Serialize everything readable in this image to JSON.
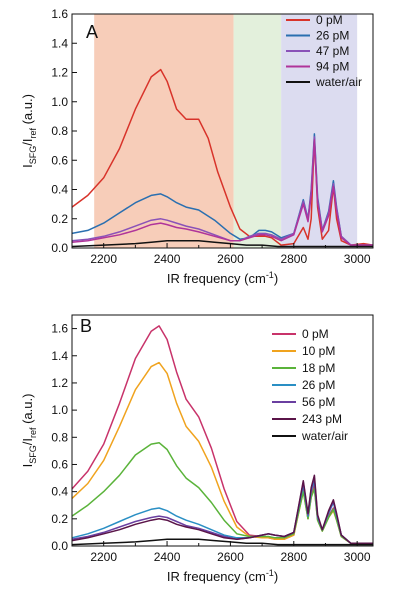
{
  "chart_data": [
    {
      "type": "line",
      "panel_label": "A",
      "xlabel": "IR frequency (cm",
      "xlabel_sup": "-1",
      "xlabel_end": ")",
      "ylabel_main": "I",
      "ylabel_sub1": "SFG",
      "ylabel_mid": "/I",
      "ylabel_sub2": "ref",
      "ylabel_end": " (a.u.)",
      "xlim": [
        2100,
        3050
      ],
      "ylim": [
        0,
        1.6
      ],
      "xticks": [
        2200,
        2400,
        2600,
        2800,
        3000
      ],
      "xtick_labels": [
        "2200",
        "2400",
        "2600",
        "2800",
        "3000"
      ],
      "yticks": [
        0.0,
        0.2,
        0.4,
        0.6,
        0.8,
        1.0,
        1.2,
        1.4,
        1.6
      ],
      "ytick_labels": [
        "0.0",
        "0.2",
        "0.4",
        "0.6",
        "0.8",
        "1.0",
        "1.2",
        "1.4",
        "1.6"
      ],
      "shaded_regions": [
        {
          "x0": 2170,
          "x1": 2610,
          "color": "#f7cdb9"
        },
        {
          "x0": 2610,
          "x1": 2760,
          "color": "#e3f0dc"
        },
        {
          "x0": 2760,
          "x1": 3000,
          "color": "#dcdcf0"
        }
      ],
      "legend_position": "top-right",
      "series": [
        {
          "name": "0 pM",
          "color": "#d8332a",
          "x": [
            2100,
            2150,
            2200,
            2250,
            2300,
            2350,
            2380,
            2400,
            2430,
            2460,
            2500,
            2530,
            2560,
            2600,
            2630,
            2660,
            2690,
            2710,
            2730,
            2760,
            2800,
            2830,
            2845,
            2855,
            2865,
            2875,
            2890,
            2910,
            2925,
            2935,
            2950,
            2980,
            3020,
            3050
          ],
          "y": [
            0.28,
            0.36,
            0.48,
            0.68,
            0.95,
            1.17,
            1.22,
            1.14,
            0.95,
            0.88,
            0.88,
            0.75,
            0.52,
            0.28,
            0.13,
            0.08,
            0.08,
            0.08,
            0.07,
            0.02,
            0.03,
            0.14,
            0.06,
            0.2,
            0.75,
            0.28,
            0.06,
            0.12,
            0.42,
            0.2,
            0.05,
            0.02,
            0.03,
            0.02
          ]
        },
        {
          "name": "26 pM",
          "color": "#2a6fb0",
          "x": [
            2100,
            2150,
            2200,
            2250,
            2300,
            2350,
            2380,
            2400,
            2430,
            2460,
            2500,
            2550,
            2600,
            2630,
            2660,
            2690,
            2710,
            2730,
            2760,
            2800,
            2830,
            2845,
            2855,
            2865,
            2875,
            2890,
            2910,
            2925,
            2935,
            2950,
            2980,
            3020,
            3050
          ],
          "y": [
            0.1,
            0.12,
            0.17,
            0.24,
            0.31,
            0.36,
            0.37,
            0.35,
            0.31,
            0.28,
            0.26,
            0.19,
            0.1,
            0.06,
            0.07,
            0.12,
            0.12,
            0.11,
            0.07,
            0.1,
            0.33,
            0.2,
            0.4,
            0.78,
            0.35,
            0.12,
            0.25,
            0.46,
            0.28,
            0.08,
            0.02,
            0.02,
            0.02
          ]
        },
        {
          "name": "47 pM",
          "color": "#8a52b8",
          "x": [
            2100,
            2150,
            2200,
            2250,
            2300,
            2350,
            2380,
            2400,
            2430,
            2460,
            2500,
            2550,
            2600,
            2630,
            2660,
            2690,
            2710,
            2730,
            2760,
            2800,
            2830,
            2845,
            2855,
            2865,
            2875,
            2890,
            2910,
            2925,
            2935,
            2950,
            2980,
            3020,
            3050
          ],
          "y": [
            0.05,
            0.06,
            0.08,
            0.11,
            0.15,
            0.19,
            0.2,
            0.19,
            0.17,
            0.15,
            0.13,
            0.09,
            0.05,
            0.05,
            0.08,
            0.1,
            0.1,
            0.09,
            0.06,
            0.1,
            0.32,
            0.2,
            0.38,
            0.76,
            0.33,
            0.12,
            0.24,
            0.44,
            0.27,
            0.08,
            0.02,
            0.02,
            0.02
          ]
        },
        {
          "name": "94 pM",
          "color": "#b0349a",
          "x": [
            2100,
            2150,
            2200,
            2250,
            2300,
            2350,
            2380,
            2400,
            2430,
            2460,
            2500,
            2550,
            2600,
            2630,
            2660,
            2690,
            2710,
            2730,
            2760,
            2800,
            2830,
            2845,
            2855,
            2865,
            2875,
            2890,
            2910,
            2925,
            2935,
            2950,
            2980,
            3020,
            3050
          ],
          "y": [
            0.04,
            0.05,
            0.07,
            0.09,
            0.12,
            0.16,
            0.17,
            0.16,
            0.14,
            0.13,
            0.11,
            0.08,
            0.05,
            0.05,
            0.07,
            0.09,
            0.09,
            0.08,
            0.05,
            0.09,
            0.3,
            0.18,
            0.36,
            0.74,
            0.31,
            0.11,
            0.22,
            0.42,
            0.25,
            0.07,
            0.02,
            0.02,
            0.02
          ]
        },
        {
          "name": "water/air",
          "color": "#111111",
          "x": [
            2100,
            2200,
            2300,
            2350,
            2400,
            2450,
            2500,
            2550,
            2600,
            2650,
            2700,
            2750,
            2800,
            2900,
            3000,
            3050
          ],
          "y": [
            0.01,
            0.02,
            0.03,
            0.04,
            0.05,
            0.05,
            0.05,
            0.04,
            0.03,
            0.02,
            0.02,
            0.01,
            0.01,
            0.01,
            0.01,
            0.01
          ]
        }
      ]
    },
    {
      "type": "line",
      "panel_label": "B",
      "xlabel": "IR frequency (cm",
      "xlabel_sup": "-1",
      "xlabel_end": ")",
      "ylabel_main": "I",
      "ylabel_sub1": "SFG",
      "ylabel_mid": "/I",
      "ylabel_sub2": "ref",
      "ylabel_end": " (a.u.)",
      "xlim": [
        2100,
        3050
      ],
      "ylim": [
        0,
        1.7
      ],
      "xticks": [
        2200,
        2400,
        2600,
        2800,
        3000
      ],
      "xtick_labels": [
        "2200",
        "2400",
        "2600",
        "2800",
        "3000"
      ],
      "yticks": [
        0.0,
        0.2,
        0.4,
        0.6,
        0.8,
        1.0,
        1.2,
        1.4,
        1.6
      ],
      "ytick_labels": [
        "0.0",
        "0.2",
        "0.4",
        "0.6",
        "0.8",
        "1.0",
        "1.2",
        "1.4",
        "1.6"
      ],
      "legend_position": "top-right",
      "series": [
        {
          "name": "0 pM",
          "color": "#c8336a",
          "x": [
            2100,
            2150,
            2200,
            2250,
            2300,
            2350,
            2375,
            2400,
            2430,
            2460,
            2500,
            2540,
            2580,
            2620,
            2660,
            2700,
            2720,
            2740,
            2770,
            2800,
            2830,
            2845,
            2855,
            2865,
            2875,
            2890,
            2910,
            2925,
            2935,
            2950,
            2980,
            3020,
            3050
          ],
          "y": [
            0.42,
            0.55,
            0.75,
            1.05,
            1.38,
            1.58,
            1.62,
            1.52,
            1.28,
            1.08,
            0.95,
            0.72,
            0.42,
            0.18,
            0.08,
            0.07,
            0.06,
            0.05,
            0.05,
            0.08,
            0.42,
            0.2,
            0.38,
            0.45,
            0.2,
            0.12,
            0.22,
            0.28,
            0.2,
            0.07,
            0.02,
            0.02,
            0.02
          ]
        },
        {
          "name": "10 pM",
          "color": "#f0a31e",
          "x": [
            2100,
            2150,
            2200,
            2250,
            2300,
            2350,
            2375,
            2400,
            2430,
            2460,
            2500,
            2540,
            2580,
            2620,
            2660,
            2700,
            2720,
            2740,
            2770,
            2800,
            2830,
            2845,
            2855,
            2865,
            2875,
            2890,
            2910,
            2925,
            2935,
            2950,
            2980,
            3020,
            3050
          ],
          "y": [
            0.35,
            0.46,
            0.63,
            0.88,
            1.15,
            1.32,
            1.35,
            1.27,
            1.05,
            0.88,
            0.77,
            0.58,
            0.33,
            0.14,
            0.07,
            0.06,
            0.06,
            0.05,
            0.05,
            0.08,
            0.4,
            0.2,
            0.36,
            0.42,
            0.19,
            0.11,
            0.21,
            0.26,
            0.19,
            0.07,
            0.02,
            0.02,
            0.02
          ]
        },
        {
          "name": "18 pM",
          "color": "#5ab33a",
          "x": [
            2100,
            2150,
            2200,
            2250,
            2300,
            2350,
            2375,
            2400,
            2430,
            2460,
            2500,
            2540,
            2580,
            2620,
            2660,
            2700,
            2720,
            2740,
            2770,
            2800,
            2830,
            2845,
            2855,
            2865,
            2875,
            2890,
            2910,
            2925,
            2935,
            2950,
            2980,
            3020,
            3050
          ],
          "y": [
            0.22,
            0.3,
            0.4,
            0.52,
            0.67,
            0.75,
            0.76,
            0.71,
            0.59,
            0.5,
            0.43,
            0.32,
            0.19,
            0.09,
            0.07,
            0.07,
            0.07,
            0.06,
            0.06,
            0.09,
            0.4,
            0.2,
            0.36,
            0.42,
            0.19,
            0.11,
            0.21,
            0.27,
            0.19,
            0.07,
            0.02,
            0.02,
            0.02
          ]
        },
        {
          "name": "26 pM",
          "color": "#2a8fc4",
          "x": [
            2100,
            2150,
            2200,
            2250,
            2300,
            2350,
            2375,
            2400,
            2430,
            2460,
            2500,
            2540,
            2580,
            2620,
            2660,
            2700,
            2720,
            2740,
            2770,
            2800,
            2830,
            2845,
            2855,
            2865,
            2875,
            2890,
            2910,
            2925,
            2935,
            2950,
            2980,
            3020,
            3050
          ],
          "y": [
            0.06,
            0.09,
            0.13,
            0.18,
            0.23,
            0.27,
            0.28,
            0.26,
            0.22,
            0.19,
            0.16,
            0.12,
            0.08,
            0.06,
            0.06,
            0.08,
            0.09,
            0.08,
            0.07,
            0.1,
            0.45,
            0.22,
            0.4,
            0.48,
            0.21,
            0.12,
            0.24,
            0.32,
            0.22,
            0.08,
            0.02,
            0.02,
            0.02
          ]
        },
        {
          "name": "56 pM",
          "color": "#6a3fa0",
          "x": [
            2100,
            2150,
            2200,
            2250,
            2300,
            2350,
            2375,
            2400,
            2430,
            2460,
            2500,
            2540,
            2580,
            2620,
            2660,
            2700,
            2720,
            2740,
            2770,
            2800,
            2830,
            2845,
            2855,
            2865,
            2875,
            2890,
            2910,
            2925,
            2935,
            2950,
            2980,
            3020,
            3050
          ],
          "y": [
            0.05,
            0.07,
            0.1,
            0.14,
            0.18,
            0.21,
            0.22,
            0.21,
            0.18,
            0.15,
            0.13,
            0.1,
            0.07,
            0.05,
            0.06,
            0.08,
            0.09,
            0.08,
            0.07,
            0.1,
            0.47,
            0.23,
            0.42,
            0.5,
            0.22,
            0.12,
            0.25,
            0.33,
            0.23,
            0.08,
            0.02,
            0.02,
            0.02
          ]
        },
        {
          "name": "243 pM",
          "color": "#5a1448",
          "x": [
            2100,
            2150,
            2200,
            2250,
            2300,
            2350,
            2375,
            2400,
            2430,
            2460,
            2500,
            2540,
            2580,
            2620,
            2660,
            2700,
            2720,
            2740,
            2770,
            2800,
            2830,
            2845,
            2855,
            2865,
            2875,
            2890,
            2910,
            2925,
            2935,
            2950,
            2980,
            3020,
            3050
          ],
          "y": [
            0.04,
            0.06,
            0.09,
            0.12,
            0.16,
            0.19,
            0.2,
            0.19,
            0.16,
            0.14,
            0.12,
            0.09,
            0.06,
            0.05,
            0.06,
            0.08,
            0.09,
            0.08,
            0.07,
            0.1,
            0.48,
            0.24,
            0.43,
            0.52,
            0.23,
            0.12,
            0.26,
            0.34,
            0.24,
            0.08,
            0.02,
            0.02,
            0.02
          ]
        },
        {
          "name": "water/air",
          "color": "#111111",
          "x": [
            2100,
            2200,
            2300,
            2350,
            2400,
            2450,
            2500,
            2550,
            2600,
            2650,
            2700,
            2750,
            2800,
            2900,
            3000,
            3050
          ],
          "y": [
            0.01,
            0.02,
            0.03,
            0.04,
            0.05,
            0.05,
            0.05,
            0.04,
            0.03,
            0.02,
            0.02,
            0.01,
            0.01,
            0.01,
            0.01,
            0.01
          ]
        }
      ]
    }
  ]
}
